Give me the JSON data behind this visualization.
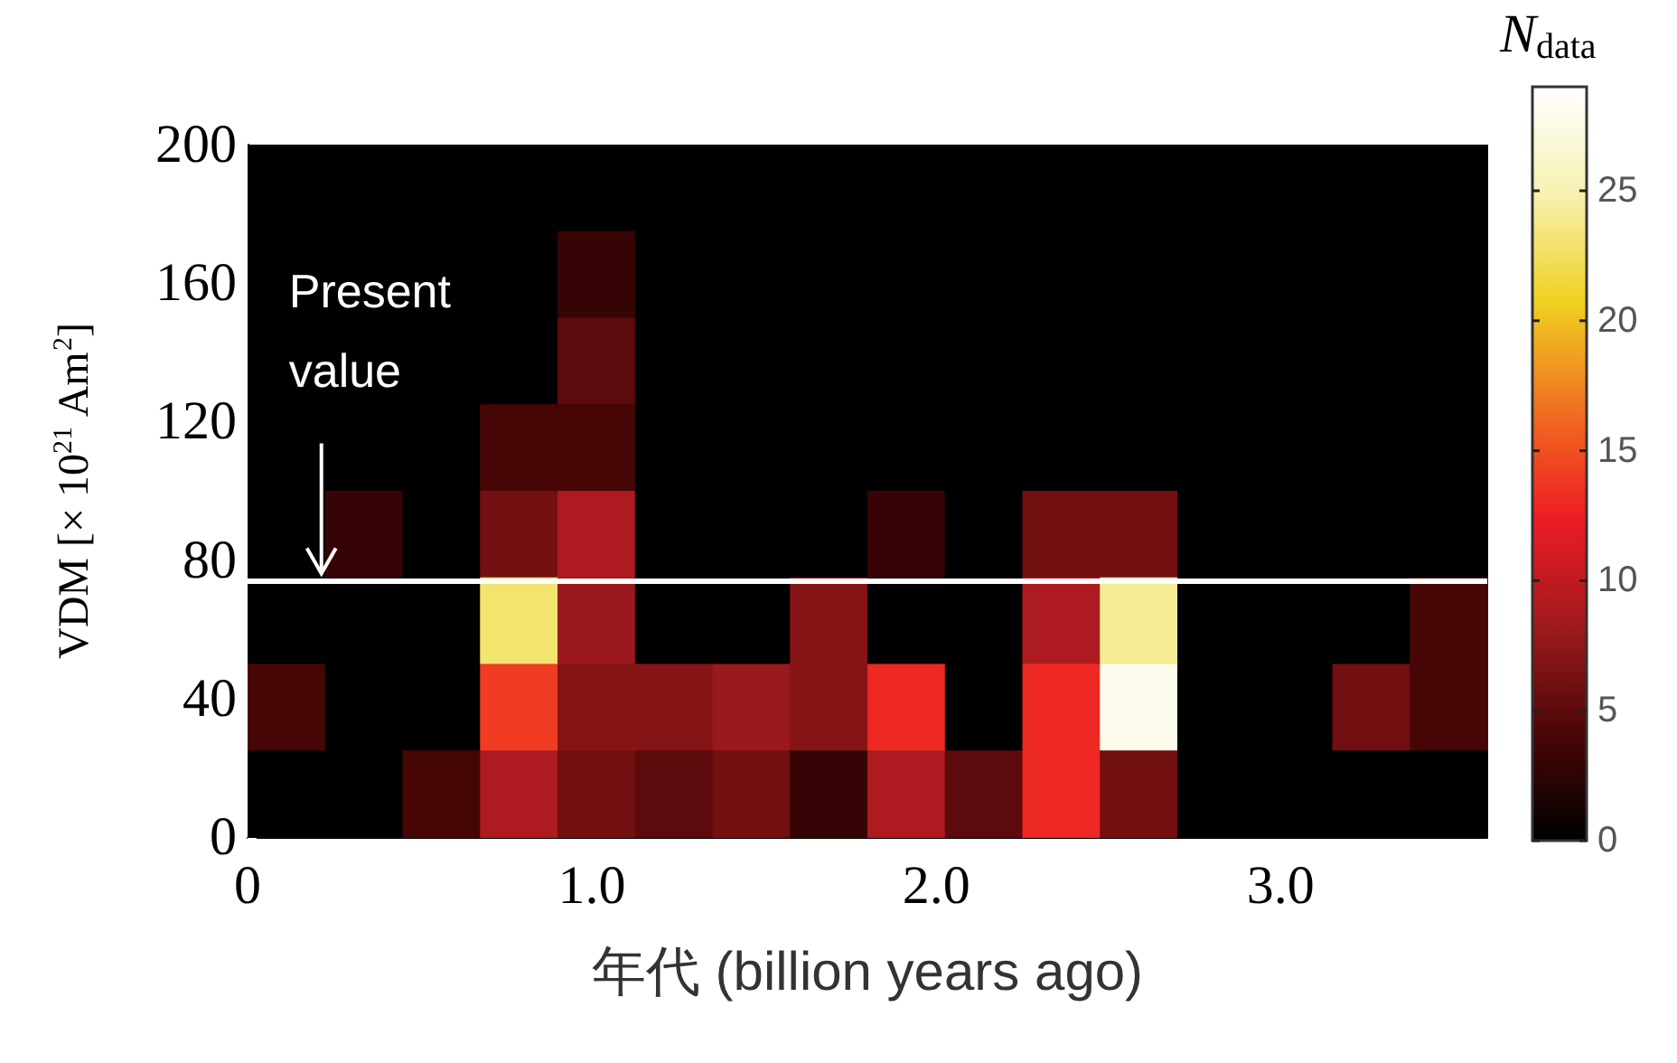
{
  "chart_data": {
    "type": "heatmap",
    "xlabel": "年代 (billion years ago)",
    "ylabel": "VDM [× 10$^{21}$ Am$^{2}$]",
    "clabel": "N$_{data}$",
    "cells": [
      [
        0,
        0,
        0,
        0,
        0,
        0,
        0,
        0,
        0,
        0,
        0,
        0,
        0,
        0,
        0,
        0
      ],
      [
        0,
        0,
        0,
        0,
        3,
        0,
        0,
        0,
        0,
        0,
        0,
        0,
        0,
        0,
        0,
        0
      ],
      [
        0,
        0,
        0,
        0,
        5,
        0,
        0,
        0,
        0,
        0,
        0,
        0,
        0,
        0,
        0,
        0
      ],
      [
        0,
        0,
        0,
        4,
        4,
        0,
        0,
        0,
        0,
        0,
        0,
        0,
        0,
        0,
        0,
        0
      ],
      [
        0,
        3,
        0,
        6,
        9,
        0,
        0,
        0,
        3,
        0,
        6,
        6,
        0,
        0,
        0,
        0
      ],
      [
        0,
        0,
        0,
        23,
        8,
        0,
        0,
        7,
        0,
        0,
        9,
        24,
        0,
        0,
        0,
        4
      ],
      [
        4,
        0,
        0,
        14,
        7,
        7,
        8,
        7,
        13,
        0,
        13,
        28,
        0,
        0,
        6,
        4
      ],
      [
        0,
        0,
        4,
        9,
        6,
        5,
        6,
        3,
        9,
        5,
        13,
        6,
        0,
        0,
        0,
        0
      ]
    ],
    "xlim": [
      0,
      3.6
    ],
    "xticks": [
      0,
      {
        "value": 1,
        "label": "1.0"
      },
      {
        "value": 2,
        "label": "2.0"
      },
      {
        "value": 3,
        "label": "3.0"
      }
    ],
    "ylim": [
      0,
      200
    ],
    "yticks": [
      0,
      40,
      80,
      120,
      160,
      200
    ],
    "clim": [
      0,
      29
    ],
    "cticks": [
      0,
      5,
      10,
      15,
      20,
      25
    ],
    "ref_lines": [
      {
        "axis": "y",
        "value": 74,
        "label": "Present value",
        "color": "#ffffff"
      }
    ]
  }
}
